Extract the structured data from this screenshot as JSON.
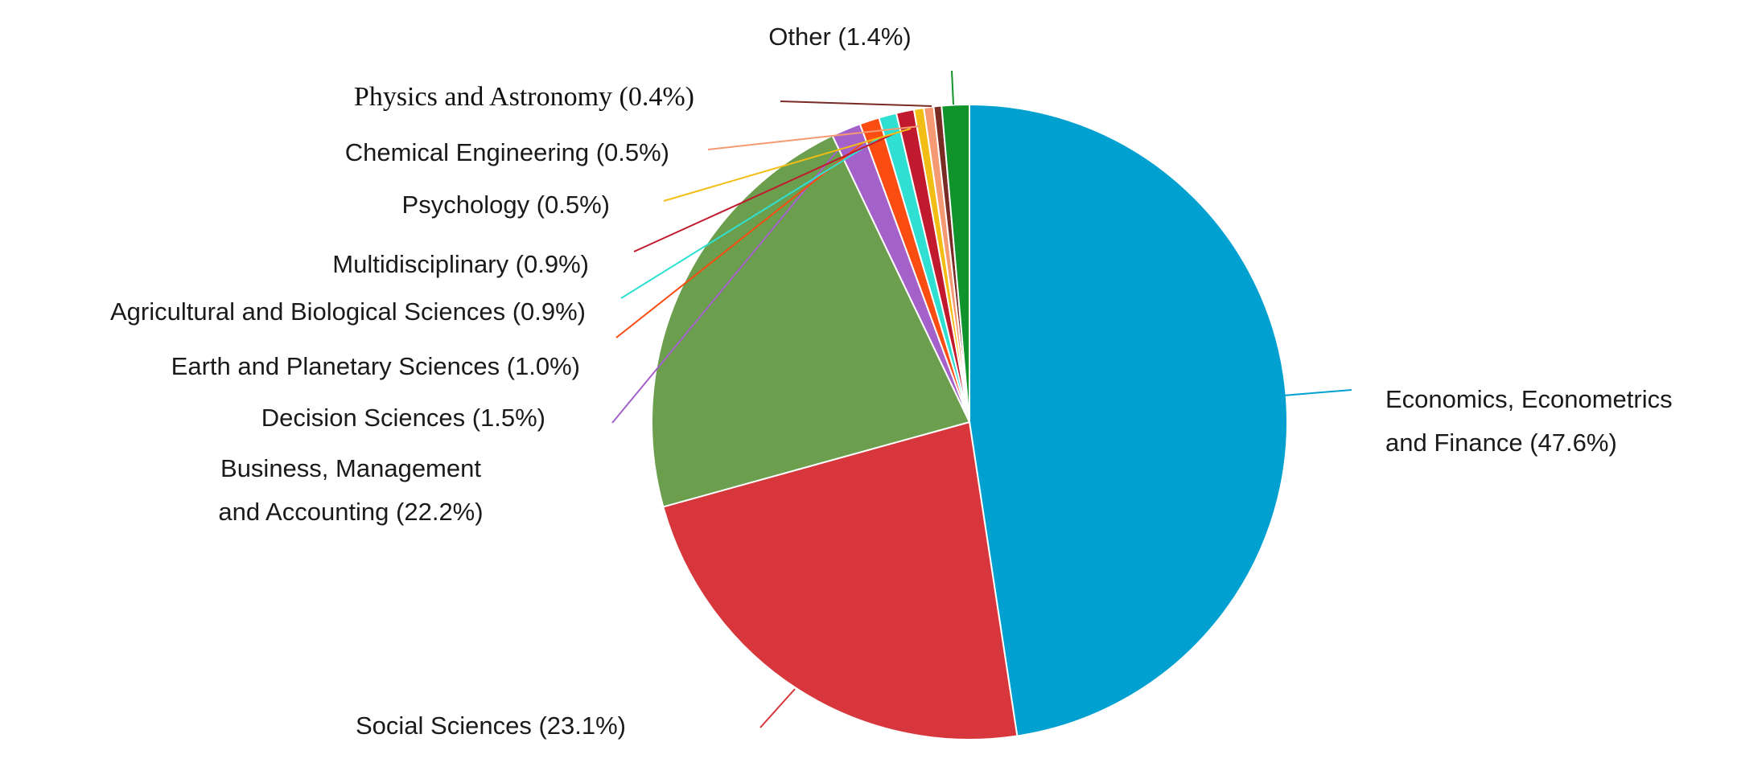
{
  "chart_data": {
    "type": "pie",
    "title": "",
    "start": "12 o'clock, clockwise",
    "slices": [
      {
        "label": "Economics, Econometrics and Finance",
        "value": 47.6,
        "display": [
          "Economics, Econometrics",
          "and Finance (47.6%)"
        ],
        "color": "#00a0d1"
      },
      {
        "label": "Social Sciences",
        "value": 23.1,
        "display": [
          "Social Sciences (23.1%)"
        ],
        "color": "#d6363c"
      },
      {
        "label": "Business, Management and Accounting",
        "value": 22.2,
        "display": [
          "Business, Management",
          "and Accounting (22.2%)"
        ],
        "color": "#6b9e4d"
      },
      {
        "label": "Decision Sciences",
        "value": 1.5,
        "display": [
          "Decision Sciences (1.5%)"
        ],
        "color": "#a461c9"
      },
      {
        "label": "Earth and Planetary Sciences",
        "value": 1.0,
        "display": [
          "Earth and Planetary Sciences (1.0%)"
        ],
        "color": "#fb4c12"
      },
      {
        "label": "Agricultural and Biological Sciences",
        "value": 0.9,
        "display": [
          "Agricultural and Biological Sciences (0.9%)"
        ],
        "color": "#2fe0d2"
      },
      {
        "label": "Multidisciplinary",
        "value": 0.9,
        "display": [
          "Multidisciplinary (0.9%)"
        ],
        "color": "#c1192e"
      },
      {
        "label": "Psychology",
        "value": 0.5,
        "display": [
          "Psychology (0.5%)"
        ],
        "color": "#f2be16"
      },
      {
        "label": "Chemical Engineering",
        "value": 0.5,
        "display": [
          "Chemical Engineering (0.5%)"
        ],
        "color": "#f59a72"
      },
      {
        "label": "Physics and Astronomy",
        "value": 0.4,
        "display": [
          "Physics and Astronomy (0.4%)"
        ],
        "color": "#7a2b24"
      },
      {
        "label": "Other",
        "value": 1.4,
        "display": [
          "Other (1.4%)"
        ],
        "color": "#11932c"
      }
    ]
  }
}
